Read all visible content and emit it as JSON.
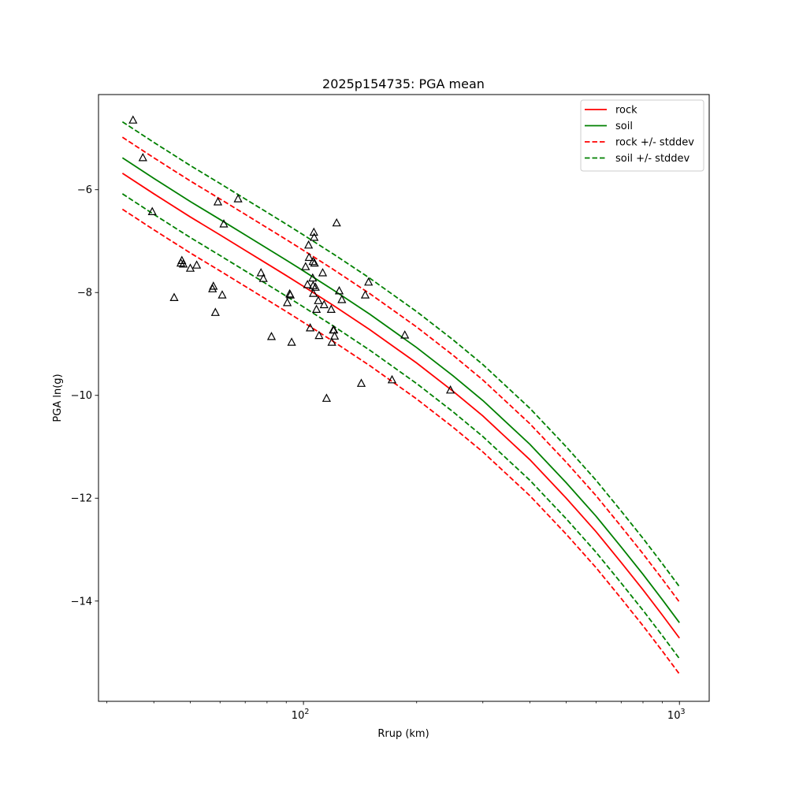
{
  "chart_data": {
    "type": "scatter",
    "title": "2025p154735: PGA mean",
    "xlabel": "Rrup (km)",
    "ylabel": "PGA ln(g)",
    "x_scale": "log",
    "xlim": [
      28.5,
      1200
    ],
    "ylim": [
      -15.95,
      -4.15
    ],
    "grid": false,
    "legend_position": "top-right",
    "y_ticks": [
      {
        "value": -6,
        "label": "−6"
      },
      {
        "value": -8,
        "label": "−8"
      },
      {
        "value": -10,
        "label": "−10"
      },
      {
        "value": -12,
        "label": "−12"
      },
      {
        "value": -14,
        "label": "−14"
      }
    ],
    "x_major_ticks": [
      {
        "value": 100,
        "base": "10",
        "exp": "2"
      },
      {
        "value": 1000,
        "base": "10",
        "exp": "3"
      }
    ],
    "x_minor_ticks": [
      30,
      40,
      50,
      60,
      70,
      80,
      90,
      200,
      300,
      400,
      500,
      600,
      700,
      800,
      900
    ],
    "series": [
      {
        "name": "rock",
        "color": "#ff0000",
        "dash": "solid",
        "x": [
          33,
          40,
          50,
          60,
          70,
          80,
          90,
          100,
          120,
          150,
          200,
          250,
          300,
          400,
          500,
          600,
          700,
          800,
          900,
          1000
        ],
        "y": [
          -5.68,
          -6.08,
          -6.53,
          -6.88,
          -7.18,
          -7.44,
          -7.67,
          -7.88,
          -8.25,
          -8.72,
          -9.37,
          -9.92,
          -10.4,
          -11.25,
          -12.0,
          -12.65,
          -13.25,
          -13.78,
          -14.27,
          -14.72
        ]
      },
      {
        "name": "soil",
        "color": "#008000",
        "dash": "solid",
        "x": [
          33,
          40,
          50,
          60,
          70,
          80,
          90,
          100,
          120,
          150,
          200,
          250,
          300,
          400,
          500,
          600,
          700,
          800,
          900,
          1000
        ],
        "y": [
          -5.38,
          -5.78,
          -6.23,
          -6.58,
          -6.88,
          -7.14,
          -7.37,
          -7.58,
          -7.95,
          -8.42,
          -9.07,
          -9.62,
          -10.1,
          -10.95,
          -11.7,
          -12.35,
          -12.95,
          -13.48,
          -13.97,
          -14.42
        ]
      },
      {
        "name": "rock +/- stddev",
        "color": "#ff0000",
        "dash": "dashed",
        "x": [
          33,
          40,
          50,
          60,
          70,
          80,
          90,
          100,
          120,
          150,
          200,
          250,
          300,
          400,
          500,
          600,
          700,
          800,
          900,
          1000
        ],
        "y": [
          -4.98,
          -5.38,
          -5.83,
          -6.18,
          -6.48,
          -6.74,
          -6.97,
          -7.18,
          -7.55,
          -8.02,
          -8.67,
          -9.22,
          -9.7,
          -10.55,
          -11.3,
          -11.95,
          -12.55,
          -13.08,
          -13.57,
          -14.02
        ]
      },
      {
        "name": "",
        "color": "#ff0000",
        "dash": "dashed",
        "x": [
          33,
          40,
          50,
          60,
          70,
          80,
          90,
          100,
          120,
          150,
          200,
          250,
          300,
          400,
          500,
          600,
          700,
          800,
          900,
          1000
        ],
        "y": [
          -6.38,
          -6.78,
          -7.23,
          -7.58,
          -7.88,
          -8.14,
          -8.37,
          -8.58,
          -8.95,
          -9.42,
          -10.07,
          -10.62,
          -11.1,
          -11.95,
          -12.7,
          -13.35,
          -13.95,
          -14.48,
          -14.97,
          -15.42
        ]
      },
      {
        "name": "soil +/- stddev",
        "color": "#008000",
        "dash": "dashed",
        "x": [
          33,
          40,
          50,
          60,
          70,
          80,
          90,
          100,
          120,
          150,
          200,
          250,
          300,
          400,
          500,
          600,
          700,
          800,
          900,
          1000
        ],
        "y": [
          -4.68,
          -5.08,
          -5.53,
          -5.88,
          -6.18,
          -6.44,
          -6.67,
          -6.88,
          -7.25,
          -7.72,
          -8.37,
          -8.92,
          -9.4,
          -10.25,
          -11.0,
          -11.65,
          -12.25,
          -12.78,
          -13.27,
          -13.72
        ]
      },
      {
        "name": "",
        "color": "#008000",
        "dash": "dashed",
        "x": [
          33,
          40,
          50,
          60,
          70,
          80,
          90,
          100,
          120,
          150,
          200,
          250,
          300,
          400,
          500,
          600,
          700,
          800,
          900,
          1000
        ],
        "y": [
          -6.08,
          -6.48,
          -6.93,
          -7.28,
          -7.58,
          -7.84,
          -8.07,
          -8.28,
          -8.65,
          -9.12,
          -9.77,
          -10.32,
          -10.8,
          -11.65,
          -12.4,
          -13.05,
          -13.65,
          -14.18,
          -14.67,
          -15.12
        ]
      }
    ],
    "observations": {
      "marker": "triangle",
      "x": [
        35.2,
        37.4,
        39.6,
        45.3,
        47.2,
        47.5,
        47.9,
        50.0,
        52.0,
        57.3,
        57.6,
        58.3,
        59.2,
        60.8,
        61.4,
        67.0,
        77.1,
        78.2,
        82.2,
        90.6,
        91.9,
        92.3,
        93.0,
        101.3,
        102.5,
        103.2,
        103.5,
        104.2,
        105.8,
        106.0,
        106.1,
        106.2,
        106.6,
        106.8,
        107.0,
        107.6,
        108.3,
        109.5,
        110.0,
        112.5,
        113.5,
        115.2,
        118.5,
        119.0,
        120.0,
        120.5,
        121.0,
        122.5,
        124.5,
        126.5,
        142.5,
        146.0,
        149.0,
        172.0,
        186.0,
        246.0
      ],
      "y": [
        -4.65,
        -5.38,
        -6.43,
        -8.1,
        -7.43,
        -7.38,
        -7.45,
        -7.53,
        -7.47,
        -7.93,
        -7.88,
        -8.39,
        -6.24,
        -8.05,
        -6.67,
        -6.18,
        -7.62,
        -7.73,
        -8.86,
        -8.2,
        -8.03,
        -8.05,
        -8.97,
        -7.5,
        -7.85,
        -7.08,
        -7.32,
        -8.69,
        -7.72,
        -7.4,
        -7.87,
        -8.02,
        -6.83,
        -6.93,
        -7.43,
        -7.9,
        -8.33,
        -8.16,
        -8.84,
        -7.62,
        -8.24,
        -10.06,
        -8.33,
        -8.97,
        -8.73,
        -8.73,
        -8.85,
        -6.65,
        -7.97,
        -8.14,
        -9.77,
        -8.05,
        -7.8,
        -9.7,
        -8.83,
        -9.9
      ]
    }
  }
}
